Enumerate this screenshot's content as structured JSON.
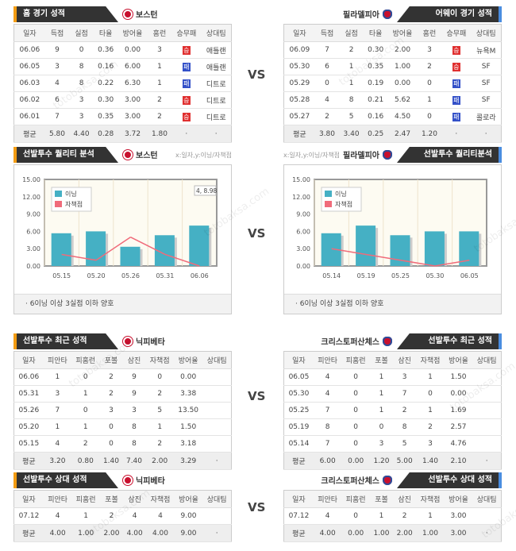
{
  "vs_label": "VS",
  "watermark": [
    "토토박사",
    "totobaksa.com"
  ],
  "home": {
    "title": "홈 경기 성적",
    "team": "보스턴",
    "headers": [
      "일자",
      "득점",
      "실점",
      "타율",
      "방어율",
      "홈런",
      "승무패",
      "상대팀"
    ],
    "rows": [
      [
        "06.06",
        "9",
        "0",
        "0.36",
        "0.00",
        "3",
        "승",
        "애틀랜"
      ],
      [
        "06.05",
        "3",
        "8",
        "0.16",
        "6.00",
        "1",
        "패",
        "애틀랜"
      ],
      [
        "06.03",
        "4",
        "8",
        "0.22",
        "6.30",
        "1",
        "패",
        "디트로"
      ],
      [
        "06.02",
        "6",
        "3",
        "0.30",
        "3.00",
        "2",
        "승",
        "디트로"
      ],
      [
        "06.01",
        "7",
        "3",
        "0.35",
        "3.00",
        "2",
        "승",
        "디트로"
      ]
    ],
    "avg": [
      "평균",
      "5.80",
      "4.40",
      "0.28",
      "3.72",
      "1.80",
      "·",
      "·"
    ]
  },
  "away": {
    "title": "어웨이 경기 성적",
    "team": "필라델피아",
    "headers": [
      "일자",
      "득점",
      "실점",
      "타율",
      "방어율",
      "홈런",
      "승무패",
      "상대팀"
    ],
    "rows": [
      [
        "06.09",
        "7",
        "2",
        "0.30",
        "2.00",
        "3",
        "승",
        "뉴욕M"
      ],
      [
        "05.30",
        "6",
        "1",
        "0.35",
        "1.00",
        "2",
        "승",
        "SF"
      ],
      [
        "05.29",
        "0",
        "1",
        "0.19",
        "0.00",
        "0",
        "패",
        "SF"
      ],
      [
        "05.28",
        "4",
        "8",
        "0.21",
        "5.62",
        "1",
        "패",
        "SF"
      ],
      [
        "05.27",
        "2",
        "5",
        "0.16",
        "4.50",
        "0",
        "패",
        "콜로라"
      ]
    ],
    "avg": [
      "평균",
      "3.80",
      "3.40",
      "0.25",
      "2.47",
      "1.20",
      "·",
      "·"
    ]
  },
  "quality": {
    "left": {
      "title": "선발투수 퀄리티 분석",
      "team": "보스턴",
      "hint": "x:일자,y:이닝/자책점",
      "note": "· 6이닝 이상 3실점 이하 양호"
    },
    "right": {
      "title": "선발투수 퀄리티분석",
      "team": "필라델피아",
      "hint": "x:일자,y:이닝/자책점",
      "note": "· 6이닝 이상 3실점 이하 양호"
    }
  },
  "chart_data": [
    {
      "type": "bar",
      "categories": [
        "05.15",
        "05.20",
        "05.26",
        "05.31",
        "06.06"
      ],
      "series": [
        {
          "name": "이닝",
          "type": "bar",
          "color": "#45b0c4",
          "values": [
            5.67,
            6,
            3.33,
            5.33,
            7
          ]
        },
        {
          "name": "자책점",
          "type": "line",
          "color": "#f06b7a",
          "values": [
            2,
            1,
            5,
            2,
            0
          ]
        }
      ],
      "yticks": [
        "0.00",
        "3.00",
        "6.00",
        "9.00",
        "12.00",
        "15.00"
      ],
      "ylim": [
        0,
        15
      ],
      "annotation": "4, 8.98",
      "legend": "top-left"
    },
    {
      "type": "bar",
      "categories": [
        "05.14",
        "05.19",
        "05.25",
        "05.30",
        "06.05"
      ],
      "series": [
        {
          "name": "이닝",
          "type": "bar",
          "color": "#45b0c4",
          "values": [
            5.67,
            7,
            5.33,
            6,
            6
          ]
        },
        {
          "name": "자책점",
          "type": "line",
          "color": "#f06b7a",
          "values": [
            3,
            2,
            1,
            0,
            1
          ]
        }
      ],
      "yticks": [
        "0.00",
        "3.00",
        "6.00",
        "9.00",
        "12.00",
        "15.00"
      ],
      "ylim": [
        0,
        15
      ],
      "legend": "top-left"
    }
  ],
  "recent_left": {
    "title": "선발투수 최근 성적",
    "team": "닉피베타",
    "headers": [
      "일자",
      "피안타",
      "피홈런",
      "포볼",
      "삼진",
      "자책점",
      "방어율",
      "상대팀"
    ],
    "rows": [
      [
        "06.06",
        "1",
        "0",
        "2",
        "9",
        "0",
        "0.00",
        ""
      ],
      [
        "05.31",
        "3",
        "1",
        "2",
        "9",
        "2",
        "3.38",
        ""
      ],
      [
        "05.26",
        "7",
        "0",
        "3",
        "3",
        "5",
        "13.50",
        ""
      ],
      [
        "05.20",
        "1",
        "1",
        "0",
        "8",
        "1",
        "1.50",
        ""
      ],
      [
        "05.15",
        "4",
        "2",
        "0",
        "8",
        "2",
        "3.18",
        ""
      ]
    ],
    "avg": [
      "평균",
      "3.20",
      "0.80",
      "1.40",
      "7.40",
      "2.00",
      "3.29",
      "·"
    ]
  },
  "recent_right": {
    "title": "선발투수 최근 성적",
    "team": "크리스토퍼산체스",
    "headers": [
      "일자",
      "피안타",
      "피홈런",
      "포볼",
      "삼진",
      "자책점",
      "방어율",
      "상대팀"
    ],
    "rows": [
      [
        "06.05",
        "4",
        "0",
        "1",
        "3",
        "1",
        "1.50",
        ""
      ],
      [
        "05.30",
        "4",
        "0",
        "1",
        "7",
        "0",
        "0.00",
        ""
      ],
      [
        "05.25",
        "7",
        "0",
        "1",
        "2",
        "1",
        "1.69",
        ""
      ],
      [
        "05.19",
        "8",
        "0",
        "0",
        "8",
        "2",
        "2.57",
        ""
      ],
      [
        "05.14",
        "7",
        "0",
        "3",
        "5",
        "3",
        "4.76",
        ""
      ]
    ],
    "avg": [
      "평균",
      "6.00",
      "0.00",
      "1.20",
      "5.00",
      "1.40",
      "2.10",
      "·"
    ]
  },
  "vs_left": {
    "title": "선발투수 상대 성적",
    "team": "닉피베타",
    "headers": [
      "일자",
      "피안타",
      "피홈런",
      "포볼",
      "삼진",
      "자책점",
      "방어율",
      "상대팀"
    ],
    "rows": [
      [
        "07.12",
        "4",
        "1",
        "2",
        "4",
        "4",
        "9.00",
        ""
      ]
    ],
    "avg": [
      "평균",
      "4.00",
      "1.00",
      "2.00",
      "4.00",
      "4.00",
      "9.00",
      "·"
    ]
  },
  "vs_right": {
    "title": "선발투수 상대 성적",
    "team": "크리스토퍼산체스",
    "headers": [
      "일자",
      "피안타",
      "피홈런",
      "포볼",
      "삼진",
      "자책점",
      "방어율",
      "상대팀"
    ],
    "rows": [
      [
        "07.12",
        "4",
        "0",
        "1",
        "2",
        "1",
        "3.00",
        ""
      ]
    ],
    "avg": [
      "평균",
      "4.00",
      "0.00",
      "1.00",
      "2.00",
      "1.00",
      "3.00",
      "·"
    ]
  }
}
